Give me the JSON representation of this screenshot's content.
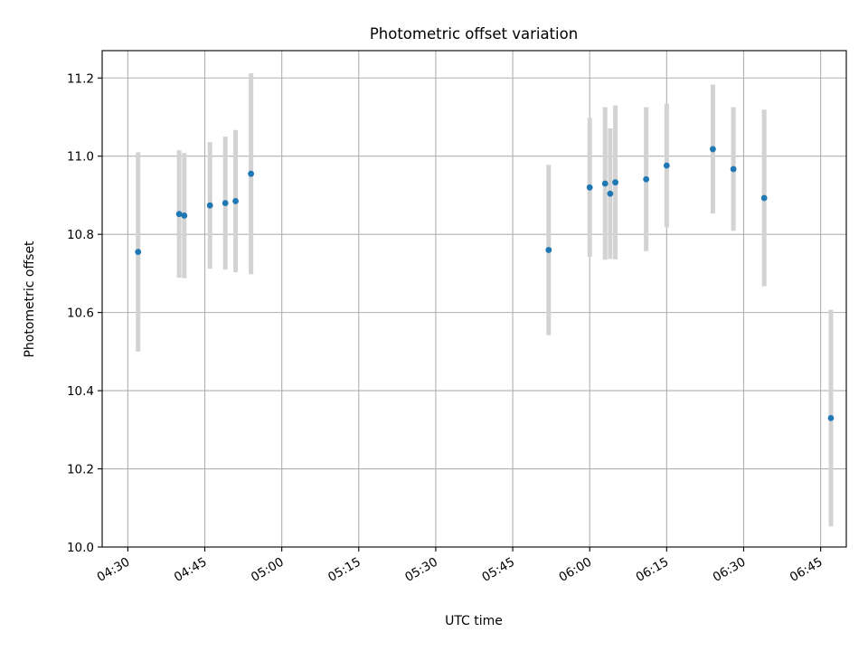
{
  "chart_data": {
    "type": "scatter",
    "title": "Photometric offset variation",
    "xlabel": "UTC time",
    "ylabel": "Photometric offset",
    "x_ticks": [
      "04:30",
      "04:45",
      "05:00",
      "05:15",
      "05:30",
      "05:45",
      "06:00",
      "06:15",
      "06:30",
      "06:45"
    ],
    "y_ticks": [
      "10.0",
      "10.2",
      "10.4",
      "10.6",
      "10.8",
      "11.0",
      "11.2"
    ],
    "xlim": [
      "04:25",
      "06:50"
    ],
    "ylim": [
      10.0,
      11.27
    ],
    "grid": true,
    "colors": {
      "point": "#1f77b4",
      "errorbar": "#d3d3d3",
      "grid": "#b0b0b0"
    },
    "series": [
      {
        "points": [
          {
            "x": "04:32",
            "y": 10.755,
            "yerr": 0.255
          },
          {
            "x": "04:40",
            "y": 10.852,
            "yerr": 0.163
          },
          {
            "x": "04:41",
            "y": 10.848,
            "yerr": 0.16
          },
          {
            "x": "04:46",
            "y": 10.874,
            "yerr": 0.162
          },
          {
            "x": "04:49",
            "y": 10.88,
            "yerr": 0.17
          },
          {
            "x": "04:51",
            "y": 10.885,
            "yerr": 0.182
          },
          {
            "x": "04:54",
            "y": 10.955,
            "yerr": 0.257
          },
          {
            "x": "05:52",
            "y": 10.76,
            "yerr": 0.218
          },
          {
            "x": "06:00",
            "y": 10.92,
            "yerr": 0.178
          },
          {
            "x": "06:03",
            "y": 10.93,
            "yerr": 0.195
          },
          {
            "x": "06:04",
            "y": 10.904,
            "yerr": 0.167
          },
          {
            "x": "06:05",
            "y": 10.933,
            "yerr": 0.197
          },
          {
            "x": "06:11",
            "y": 10.941,
            "yerr": 0.184
          },
          {
            "x": "06:15",
            "y": 10.976,
            "yerr": 0.158
          },
          {
            "x": "06:24",
            "y": 11.018,
            "yerr": 0.165
          },
          {
            "x": "06:28",
            "y": 10.967,
            "yerr": 0.158
          },
          {
            "x": "06:34",
            "y": 10.893,
            "yerr": 0.226
          },
          {
            "x": "06:47",
            "y": 10.33,
            "yerr": 0.277
          }
        ]
      }
    ]
  }
}
